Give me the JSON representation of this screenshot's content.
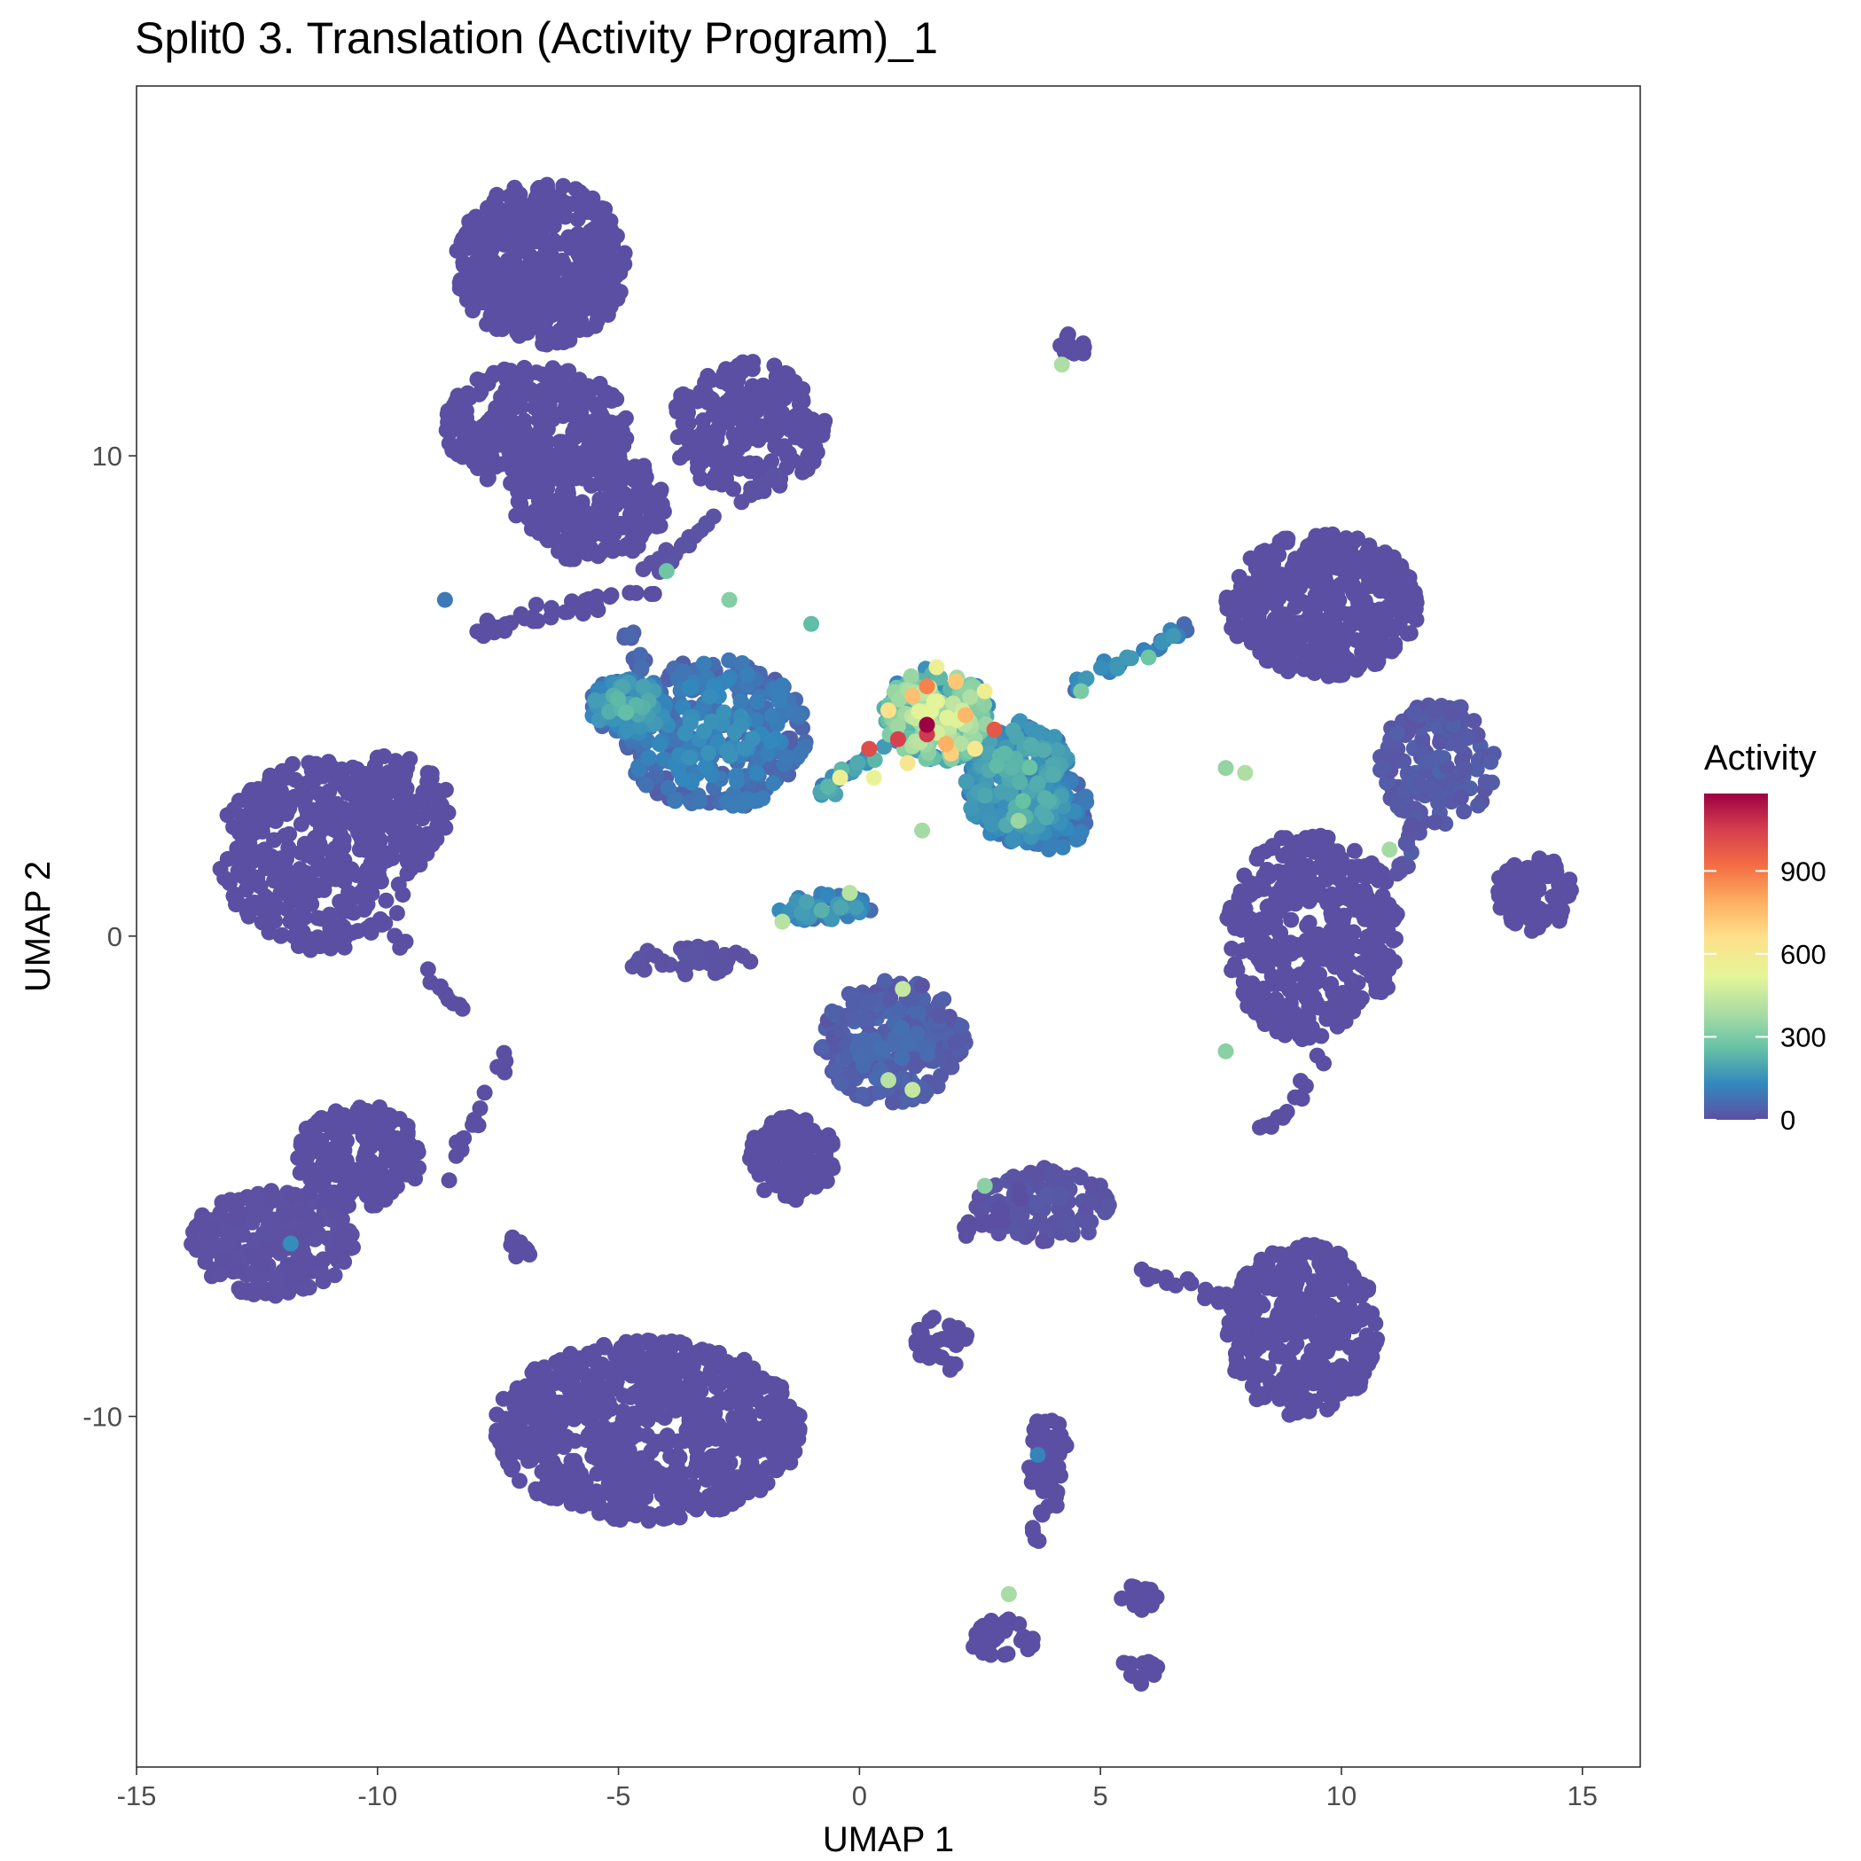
{
  "chart_data": {
    "type": "scatter",
    "title": "Split0 3. Translation (Activity Program)_1",
    "xlabel": "UMAP 1",
    "ylabel": "UMAP 2",
    "xlim": [
      -15,
      16.2
    ],
    "ylim": [
      -17.3,
      17.7
    ],
    "xticks": [
      -15,
      -10,
      -5,
      0,
      5,
      10,
      15
    ],
    "yticks": [
      -10,
      0,
      10
    ],
    "grid": false,
    "legend": {
      "title": "Activity",
      "placement": "right",
      "range": [
        0,
        1180
      ],
      "ticks": [
        0,
        300,
        600,
        900
      ],
      "colormap": [
        "#5e4fa2",
        "#3288bd",
        "#66c2a5",
        "#abdda4",
        "#e6f598",
        "#fee08b",
        "#fdae61",
        "#f46d43",
        "#d53e4f",
        "#9e0142"
      ]
    },
    "point_color_base": "#5a4fa3",
    "clusters": [
      {
        "cx": -6.6,
        "cy": 14.0,
        "rx": 1.8,
        "ry": 1.7,
        "n": 420,
        "act": 0
      },
      {
        "cx": -6.7,
        "cy": 10.6,
        "rx": 1.9,
        "ry": 1.3,
        "n": 300,
        "act": 0
      },
      {
        "cx": -5.6,
        "cy": 9.0,
        "rx": 1.6,
        "ry": 1.2,
        "n": 240,
        "act": 0
      },
      {
        "cx": -2.3,
        "cy": 10.6,
        "rx": 1.6,
        "ry": 1.4,
        "n": 220,
        "act": 0
      },
      {
        "cx": -11.2,
        "cy": 1.7,
        "rx": 2.1,
        "ry": 2.0,
        "n": 380,
        "act": 0
      },
      {
        "cx": -9.6,
        "cy": 2.6,
        "rx": 1.1,
        "ry": 1.2,
        "n": 120,
        "act": 0
      },
      {
        "cx": -12.2,
        "cy": -6.4,
        "rx": 1.7,
        "ry": 1.1,
        "n": 240,
        "act": 5
      },
      {
        "cx": -10.4,
        "cy": -4.6,
        "rx": 1.3,
        "ry": 1.1,
        "n": 160,
        "act": 0
      },
      {
        "cx": -4.4,
        "cy": -10.3,
        "rx": 3.2,
        "ry": 1.9,
        "n": 780,
        "act": 0
      },
      {
        "cx": -3.0,
        "cy": 4.2,
        "rx": 1.9,
        "ry": 1.6,
        "n": 340,
        "act": 130
      },
      {
        "cx": -4.8,
        "cy": 4.8,
        "rx": 0.8,
        "ry": 0.6,
        "n": 110,
        "act": 200
      },
      {
        "cx": 1.6,
        "cy": 4.6,
        "rx": 1.1,
        "ry": 1.0,
        "n": 220,
        "act": 430
      },
      {
        "cx": 3.3,
        "cy": 3.2,
        "rx": 1.1,
        "ry": 1.3,
        "n": 240,
        "act": 220
      },
      {
        "cx": 4.0,
        "cy": 2.6,
        "rx": 0.8,
        "ry": 0.8,
        "n": 100,
        "act": 140
      },
      {
        "cx": 9.6,
        "cy": 6.9,
        "rx": 2.0,
        "ry": 1.5,
        "n": 420,
        "act": 0
      },
      {
        "cx": 9.4,
        "cy": 0.0,
        "rx": 1.8,
        "ry": 2.2,
        "n": 400,
        "act": 0
      },
      {
        "cx": 12.0,
        "cy": 3.6,
        "rx": 1.2,
        "ry": 1.3,
        "n": 160,
        "act": 40
      },
      {
        "cx": 14.0,
        "cy": 0.9,
        "rx": 0.8,
        "ry": 0.8,
        "n": 90,
        "act": 0
      },
      {
        "cx": 9.2,
        "cy": -8.2,
        "rx": 1.6,
        "ry": 1.8,
        "n": 320,
        "act": 0
      },
      {
        "cx": 0.7,
        "cy": -2.2,
        "rx": 1.5,
        "ry": 1.3,
        "n": 260,
        "act": 60
      },
      {
        "cx": -1.4,
        "cy": -4.6,
        "rx": 0.9,
        "ry": 0.9,
        "n": 140,
        "act": 0
      },
      {
        "cx": 3.8,
        "cy": -5.6,
        "rx": 1.4,
        "ry": 0.8,
        "n": 130,
        "act": 20
      },
      {
        "cx": 3.9,
        "cy": -11.0,
        "rx": 0.4,
        "ry": 1.1,
        "n": 40,
        "act": 0
      },
      {
        "cx": 3.0,
        "cy": -14.6,
        "rx": 0.7,
        "ry": 0.5,
        "n": 30,
        "act": 0
      },
      {
        "cx": 5.8,
        "cy": -15.3,
        "rx": 0.4,
        "ry": 0.3,
        "n": 15,
        "act": 0
      },
      {
        "cx": 5.8,
        "cy": -13.8,
        "rx": 0.4,
        "ry": 0.3,
        "n": 15,
        "act": 0
      },
      {
        "cx": -0.7,
        "cy": 0.6,
        "rx": 1.0,
        "ry": 0.3,
        "n": 50,
        "act": 180
      },
      {
        "cx": -3.6,
        "cy": -0.5,
        "rx": 1.4,
        "ry": 0.3,
        "n": 40,
        "act": 10
      },
      {
        "cx": 4.4,
        "cy": 12.3,
        "rx": 0.3,
        "ry": 0.3,
        "n": 12,
        "act": 0
      },
      {
        "cx": 1.6,
        "cy": -8.5,
        "rx": 0.7,
        "ry": 0.6,
        "n": 25,
        "act": 0
      }
    ],
    "bridges": [
      {
        "x1": -8.0,
        "y1": 6.4,
        "x2": -4.2,
        "y2": 7.2,
        "n": 40,
        "act": 0
      },
      {
        "x1": -4.5,
        "y1": 7.5,
        "x2": -1.8,
        "y2": 9.6,
        "n": 30,
        "act": 10
      },
      {
        "x1": -6.4,
        "y1": 11.4,
        "x2": -4.0,
        "y2": 8.6,
        "n": 30,
        "act": 0
      },
      {
        "x1": -4.8,
        "y1": 6.4,
        "x2": -4.4,
        "y2": 5.4,
        "n": 12,
        "act": 60
      },
      {
        "x1": -0.8,
        "y1": 3.0,
        "x2": 0.6,
        "y2": 4.0,
        "n": 25,
        "act": 200
      },
      {
        "x1": 4.4,
        "y1": 5.2,
        "x2": 6.8,
        "y2": 6.4,
        "n": 30,
        "act": 150
      },
      {
        "x1": -8.6,
        "y1": -5.0,
        "x2": -7.2,
        "y2": -2.4,
        "n": 15,
        "act": 0
      },
      {
        "x1": -10.0,
        "y1": 0.4,
        "x2": -8.2,
        "y2": -1.6,
        "n": 15,
        "act": 0
      },
      {
        "x1": 2.2,
        "y1": -6.2,
        "x2": 3.4,
        "y2": -5.4,
        "n": 15,
        "act": 0
      },
      {
        "x1": 3.6,
        "y1": -12.8,
        "x2": 4.2,
        "y2": -10.4,
        "n": 20,
        "act": 0
      },
      {
        "x1": 5.8,
        "y1": -7.0,
        "x2": 7.8,
        "y2": -7.6,
        "n": 20,
        "act": 0
      },
      {
        "x1": -7.4,
        "y1": -6.3,
        "x2": -6.8,
        "y2": -6.6,
        "n": 10,
        "act": 0
      },
      {
        "x1": 9.6,
        "y1": -2.6,
        "x2": 8.4,
        "y2": -4.2,
        "n": 15,
        "act": 0
      },
      {
        "x1": 11.6,
        "y1": 2.6,
        "x2": 11.2,
        "y2": 1.2,
        "n": 15,
        "act": 30
      }
    ],
    "highlights": [
      {
        "x": 1.4,
        "y": 4.4,
        "v": 1180
      },
      {
        "x": 1.4,
        "y": 4.2,
        "v": 1060
      },
      {
        "x": 0.8,
        "y": 4.1,
        "v": 1040
      },
      {
        "x": 0.2,
        "y": 3.9,
        "v": 1010
      },
      {
        "x": 2.8,
        "y": 4.3,
        "v": 980
      },
      {
        "x": 1.4,
        "y": 5.2,
        "v": 880
      },
      {
        "x": 1.8,
        "y": 4.0,
        "v": 780
      },
      {
        "x": 2.2,
        "y": 4.6,
        "v": 760
      },
      {
        "x": 1.1,
        "y": 5.0,
        "v": 740
      },
      {
        "x": 2.0,
        "y": 5.3,
        "v": 720
      },
      {
        "x": 1.9,
        "y": 3.8,
        "v": 700
      },
      {
        "x": 0.6,
        "y": 4.7,
        "v": 650
      },
      {
        "x": 1.0,
        "y": 3.6,
        "v": 620
      },
      {
        "x": 2.4,
        "y": 3.9,
        "v": 600
      },
      {
        "x": 2.6,
        "y": 5.1,
        "v": 580
      },
      {
        "x": -0.4,
        "y": 3.3,
        "v": 560
      },
      {
        "x": 1.6,
        "y": 5.6,
        "v": 560
      },
      {
        "x": 0.3,
        "y": 3.3,
        "v": 540
      },
      {
        "x": 4.2,
        "y": 11.9,
        "v": 400
      },
      {
        "x": 0.9,
        "y": -1.1,
        "v": 450
      },
      {
        "x": 1.1,
        "y": -3.2,
        "v": 450
      },
      {
        "x": 0.6,
        "y": -3.0,
        "v": 420
      },
      {
        "x": -0.2,
        "y": 0.9,
        "v": 420
      },
      {
        "x": -1.6,
        "y": 0.3,
        "v": 420
      },
      {
        "x": 8.0,
        "y": 3.4,
        "v": 400
      },
      {
        "x": 7.6,
        "y": 3.5,
        "v": 350
      },
      {
        "x": 11.0,
        "y": 1.8,
        "v": 380
      },
      {
        "x": 7.6,
        "y": -2.4,
        "v": 330
      },
      {
        "x": 3.1,
        "y": -13.7,
        "v": 390
      },
      {
        "x": 2.6,
        "y": -5.2,
        "v": 330
      },
      {
        "x": -2.7,
        "y": 7.0,
        "v": 320
      },
      {
        "x": -4.0,
        "y": 7.6,
        "v": 280
      },
      {
        "x": -1.0,
        "y": 6.5,
        "v": 250
      },
      {
        "x": 1.3,
        "y": 2.2,
        "v": 380
      },
      {
        "x": 3.3,
        "y": 2.4,
        "v": 360
      },
      {
        "x": 4.6,
        "y": 5.1,
        "v": 300
      },
      {
        "x": 6.0,
        "y": 5.8,
        "v": 280
      },
      {
        "x": -11.8,
        "y": -6.4,
        "v": 140
      },
      {
        "x": -8.6,
        "y": 7.0,
        "v": 100
      },
      {
        "x": 3.7,
        "y": -10.8,
        "v": 120
      }
    ]
  }
}
